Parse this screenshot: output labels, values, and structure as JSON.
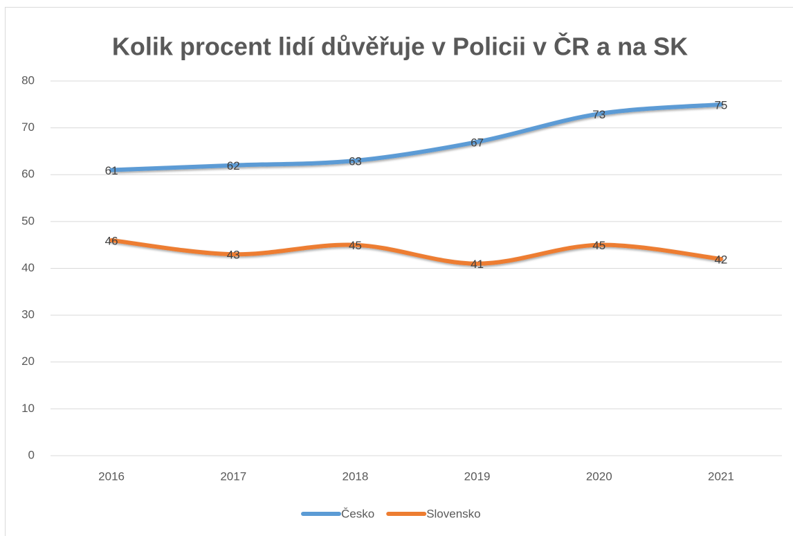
{
  "chart_data": {
    "type": "line",
    "title": "Kolik procent lidí důvěřuje v Policii v ČR a na SK",
    "categories": [
      "2016",
      "2017",
      "2018",
      "2019",
      "2020",
      "2021"
    ],
    "series": [
      {
        "name": "Česko",
        "color": "#5b9bd5",
        "values": [
          61,
          62,
          63,
          67,
          73,
          75
        ]
      },
      {
        "name": "Slovensko",
        "color": "#ed7d31",
        "values": [
          46,
          43,
          45,
          41,
          45,
          42
        ]
      }
    ],
    "ylim": [
      0,
      80
    ],
    "yticks": [
      0,
      10,
      20,
      30,
      40,
      50,
      60,
      70,
      80
    ],
    "grid": true,
    "legend": "bottom"
  }
}
